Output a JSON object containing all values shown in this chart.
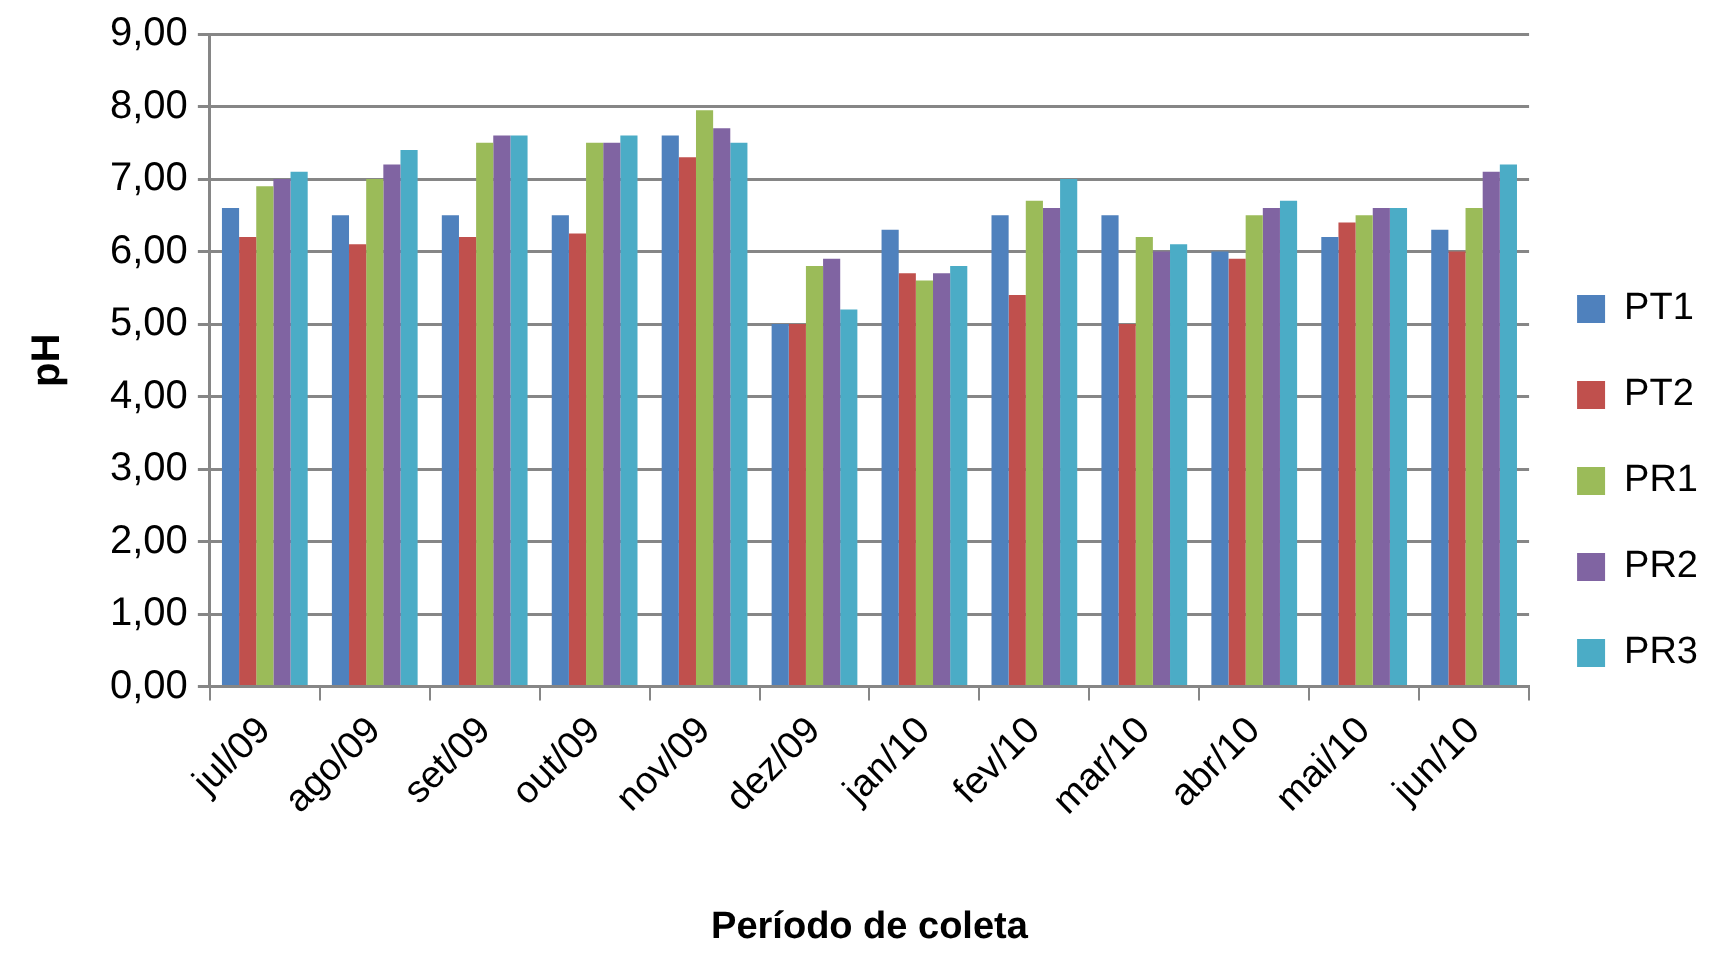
{
  "chart_data": {
    "type": "bar",
    "xlabel": "Período de coleta",
    "ylabel": "pH",
    "categories": [
      "jul/09",
      "ago/09",
      "set/09",
      "out/09",
      "nov/09",
      "dez/09",
      "jan/10",
      "fev/10",
      "mar/10",
      "abr/10",
      "mai/10",
      "jun/10"
    ],
    "series": [
      {
        "name": "PT1",
        "color": "#4f81bd",
        "values": [
          6.6,
          6.5,
          6.5,
          6.5,
          7.6,
          5.0,
          6.3,
          6.5,
          6.5,
          6.0,
          6.2,
          6.3
        ]
      },
      {
        "name": "PT2",
        "color": "#c0504d",
        "values": [
          6.2,
          6.1,
          6.2,
          6.25,
          7.3,
          5.0,
          5.7,
          5.4,
          5.0,
          5.9,
          6.4,
          6.0
        ]
      },
      {
        "name": "PR1",
        "color": "#9bbb59",
        "values": [
          6.9,
          7.0,
          7.5,
          7.5,
          7.95,
          5.8,
          5.6,
          6.7,
          6.2,
          6.5,
          6.5,
          6.6
        ]
      },
      {
        "name": "PR2",
        "color": "#8064a2",
        "values": [
          7.0,
          7.2,
          7.6,
          7.5,
          7.7,
          5.9,
          5.7,
          6.6,
          6.0,
          6.6,
          6.6,
          7.1
        ]
      },
      {
        "name": "PR3",
        "color": "#4bacc6",
        "values": [
          7.1,
          7.4,
          7.6,
          7.6,
          7.5,
          5.2,
          5.8,
          7.0,
          6.1,
          6.7,
          6.6,
          7.2
        ]
      }
    ],
    "ylim": [
      0,
      9
    ],
    "yticks": [
      {
        "value": 0,
        "label": "0,00"
      },
      {
        "value": 1,
        "label": "1,00"
      },
      {
        "value": 2,
        "label": "2,00"
      },
      {
        "value": 3,
        "label": "3,00"
      },
      {
        "value": 4,
        "label": "4,00"
      },
      {
        "value": 5,
        "label": "5,00"
      },
      {
        "value": 6,
        "label": "6,00"
      },
      {
        "value": 7,
        "label": "7,00"
      },
      {
        "value": 8,
        "label": "8,00"
      },
      {
        "value": 9,
        "label": "9,00"
      }
    ],
    "grid": "y",
    "legend": "right"
  }
}
